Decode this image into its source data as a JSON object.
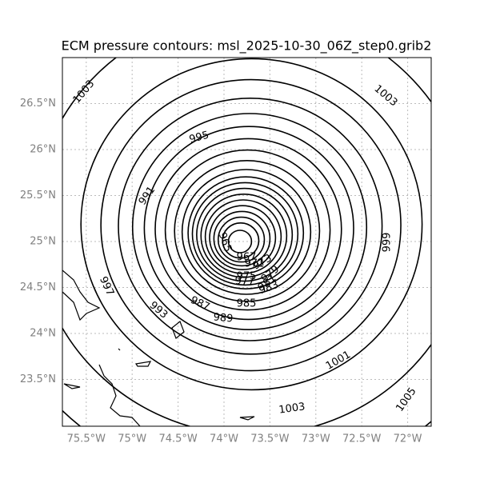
{
  "title": "ECM pressure contours: msl_2025-10-30_06Z_step0.grib2",
  "lon_ticks": [
    {
      "value": -75.5,
      "label": "75.5°W"
    },
    {
      "value": -75,
      "label": "75°W"
    },
    {
      "value": -74.5,
      "label": "74.5°W"
    },
    {
      "value": -74,
      "label": "74°W"
    },
    {
      "value": -73.5,
      "label": "73.5°W"
    },
    {
      "value": -73,
      "label": "73°W"
    },
    {
      "value": -72.5,
      "label": "72.5°W"
    },
    {
      "value": -72,
      "label": "72°W"
    }
  ],
  "lat_ticks": [
    {
      "value": 26.5,
      "label": "26.5°N"
    },
    {
      "value": 26,
      "label": "26°N"
    },
    {
      "value": 25.5,
      "label": "25.5°N"
    },
    {
      "value": 25,
      "label": "25°N"
    },
    {
      "value": 24.5,
      "label": "24.5°N"
    },
    {
      "value": 24,
      "label": "24°N"
    },
    {
      "value": 23.5,
      "label": "23.5°N"
    }
  ],
  "contour_labels": [
    1003,
    1003,
    995,
    991,
    965,
    967,
    971,
    973,
    975,
    977,
    979,
    981,
    999,
    997,
    993,
    987,
    989,
    985,
    983,
    1001,
    1003,
    1005
  ]
}
